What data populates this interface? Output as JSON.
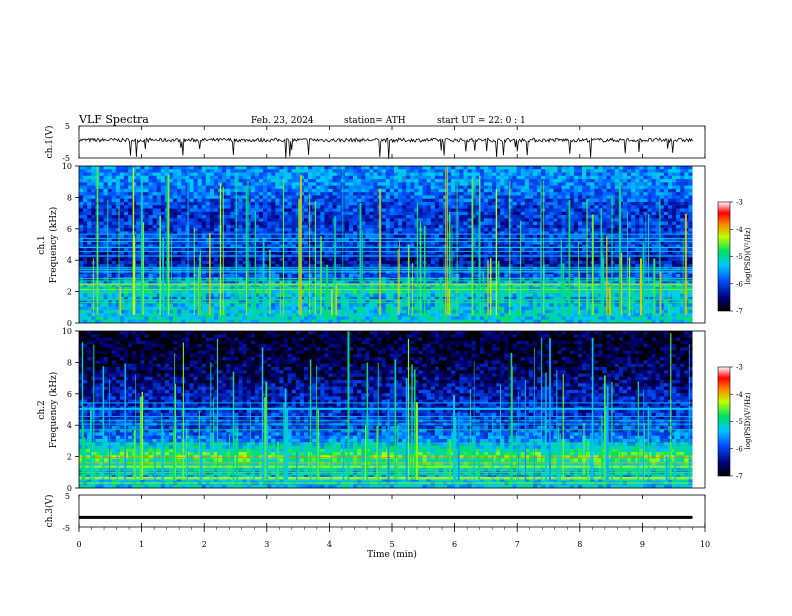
{
  "header": {
    "title": "VLF  Spectra",
    "date": "Feb. 23, 2024",
    "station": "station= ATH",
    "start_ut": "start  UT  =    22: 0   : 1"
  },
  "chart_data": [
    {
      "type": "line",
      "panel": "ch1-waveform",
      "ylabel": "ch.1(V)",
      "ylim": [
        -5,
        5
      ],
      "yticks": [
        "5",
        "-5"
      ],
      "x_range_min": [
        0,
        9.8
      ],
      "baseline_v": 0.6,
      "noise_v": 0.6
    },
    {
      "type": "heatmap",
      "panel": "ch1-spectrogram",
      "ylabel_channel": "ch.1",
      "ylabel": "Frequency  (kHz)",
      "ylim": [
        0,
        10
      ],
      "yticks": [
        "0",
        "2",
        "4",
        "6",
        "8",
        "10"
      ],
      "x_range_min": [
        0,
        9.8
      ],
      "colorbar": {
        "label": "log(PSD)(V²/Hz)",
        "range": [
          -7,
          -3
        ],
        "ticks": [
          "-3",
          "-4",
          "-5",
          "-6",
          "-7"
        ]
      },
      "intensity_profile_log_psd": [
        {
          "f_khz": 0.5,
          "v": -5.2
        },
        {
          "f_khz": 1.0,
          "v": -5.3
        },
        {
          "f_khz": 1.5,
          "v": -5.6
        },
        {
          "f_khz": 2.0,
          "v": -5.0
        },
        {
          "f_khz": 2.5,
          "v": -5.5
        },
        {
          "f_khz": 3.0,
          "v": -5.9
        },
        {
          "f_khz": 4.0,
          "v": -6.4
        },
        {
          "f_khz": 5.0,
          "v": -6.0
        },
        {
          "f_khz": 7.0,
          "v": -6.1
        },
        {
          "f_khz": 9.0,
          "v": -5.6
        }
      ]
    },
    {
      "type": "heatmap",
      "panel": "ch2-spectrogram",
      "ylabel_channel": "ch.2",
      "ylabel": "Frequency  (kHz)",
      "ylim": [
        0,
        10
      ],
      "yticks": [
        "0",
        "2",
        "4",
        "6",
        "8",
        "10"
      ],
      "x_range_min": [
        0,
        9.8
      ],
      "colorbar": {
        "label": "log(PSD)(V²/Hz)",
        "range": [
          -7,
          -3
        ],
        "ticks": [
          "-3",
          "-4",
          "-5",
          "-6",
          "-7"
        ]
      },
      "intensity_profile_log_psd": [
        {
          "f_khz": 0.5,
          "v": -5.3
        },
        {
          "f_khz": 1.0,
          "v": -5.5
        },
        {
          "f_khz": 2.0,
          "v": -4.6
        },
        {
          "f_khz": 3.0,
          "v": -5.6
        },
        {
          "f_khz": 4.0,
          "v": -6.0
        },
        {
          "f_khz": 6.0,
          "v": -6.3
        },
        {
          "f_khz": 8.0,
          "v": -6.7
        },
        {
          "f_khz": 9.0,
          "v": -6.8
        }
      ]
    },
    {
      "type": "line",
      "panel": "ch3-waveform",
      "ylabel": "ch.3(V)",
      "ylim": [
        -5,
        5
      ],
      "yticks": [
        "5",
        "-5"
      ],
      "x_range_min": [
        0,
        9.8
      ],
      "baseline_v": -2.0
    }
  ],
  "xaxis": {
    "label": "Time  (min)",
    "range": [
      0,
      10
    ],
    "ticks": [
      "0",
      "1",
      "2",
      "3",
      "4",
      "5",
      "6",
      "7",
      "8",
      "9",
      "10"
    ]
  }
}
